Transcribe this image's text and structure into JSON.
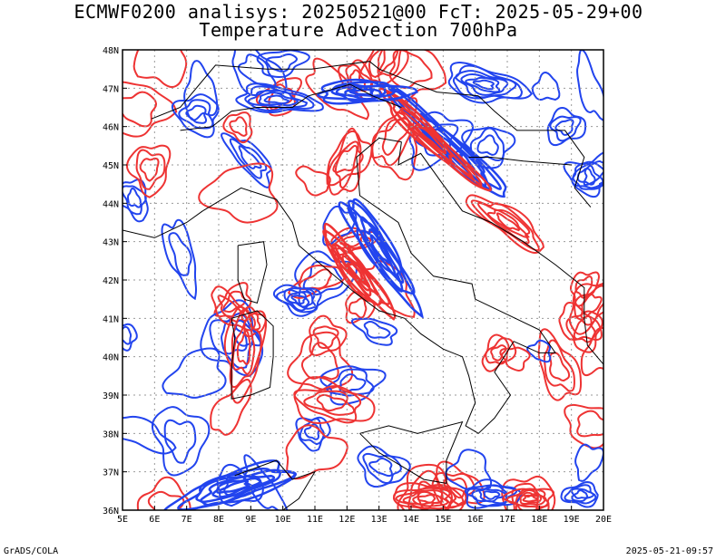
{
  "title": {
    "line1": "ECMWF0200 analisys: 20250521@00 FcT: 2025-05-29+00",
    "line2": "Temperature Advection 700hPa"
  },
  "axes": {
    "lat_labels": [
      "48N",
      "47N",
      "46N",
      "45N",
      "44N",
      "43N",
      "42N",
      "41N",
      "40N",
      "39N",
      "38N",
      "37N",
      "36N"
    ],
    "lon_labels": [
      "5E",
      "6E",
      "7E",
      "8E",
      "9E",
      "10E",
      "11E",
      "12E",
      "13E",
      "14E",
      "15E",
      "16E",
      "17E",
      "18E",
      "19E",
      "20E"
    ]
  },
  "colors": {
    "positive": "#ee3333",
    "negative": "#2244ee",
    "coast": "#000000",
    "grid": "#999999"
  },
  "footer": {
    "left": "GrADS/COLA",
    "right": "2025-05-21-09:57"
  }
}
